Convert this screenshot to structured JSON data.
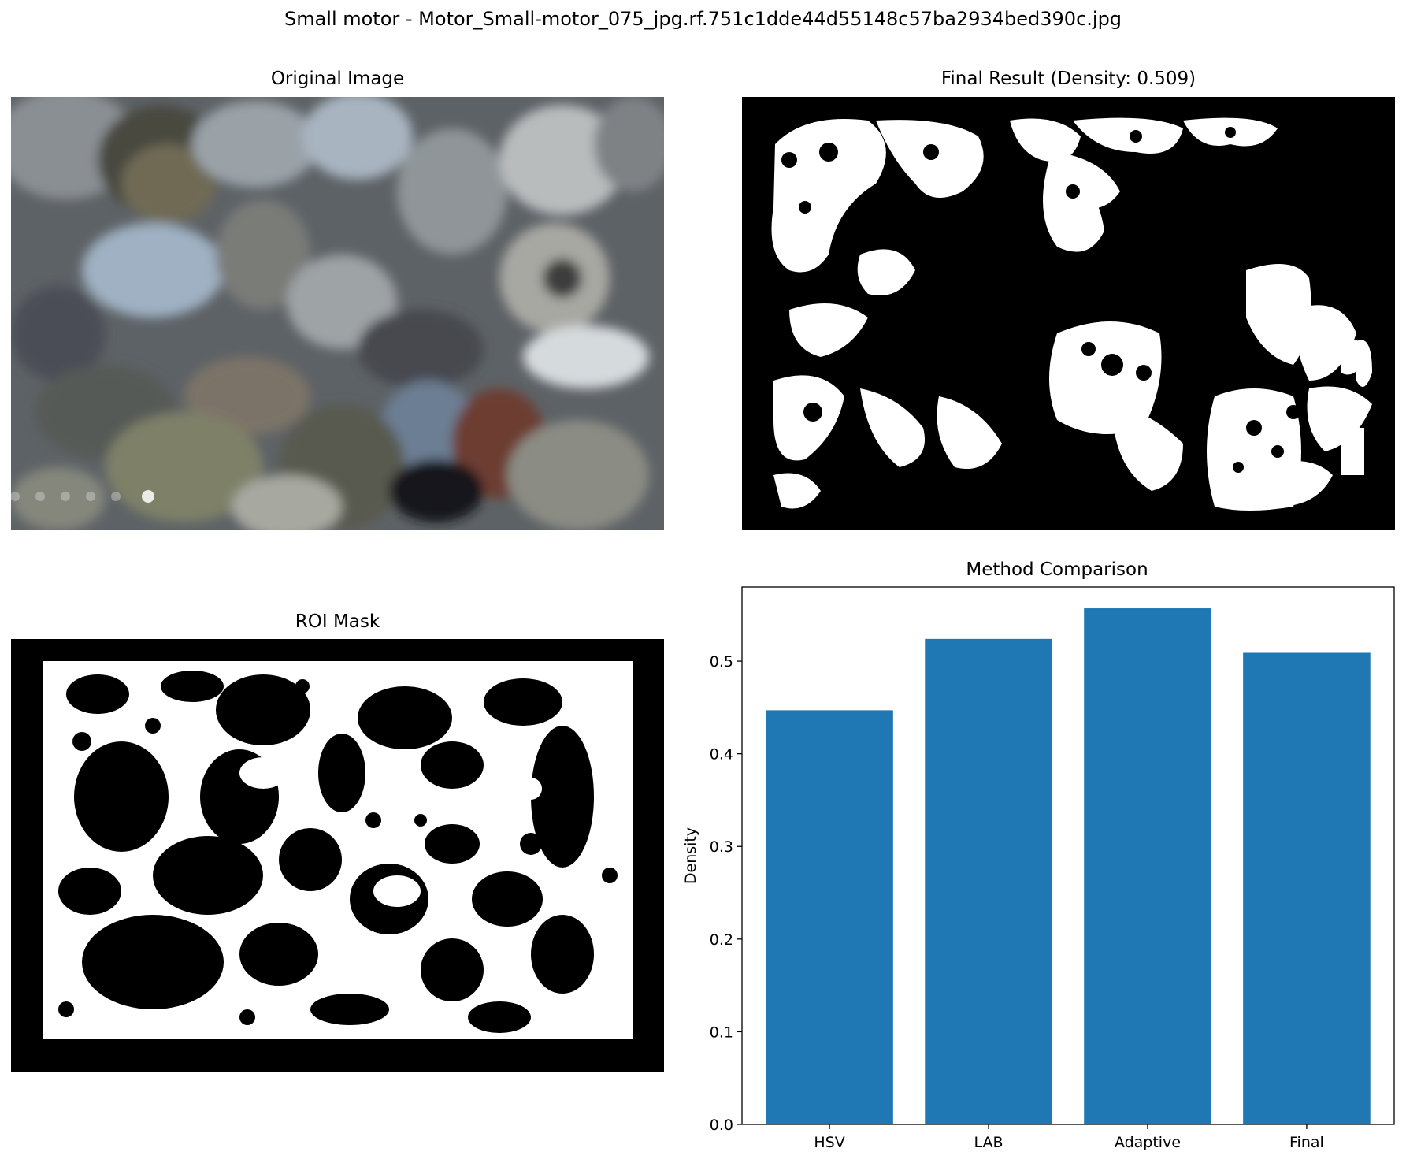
{
  "figure": {
    "title": "Small motor - Motor_Small-motor_075_jpg.rf.751c1dde44d55148c57ba2934bed390c.jpg"
  },
  "panels": {
    "original": {
      "title": "Original Image"
    },
    "final": {
      "title": "Final Result (Density: 0.509)"
    },
    "roi": {
      "title": "ROI Mask"
    }
  },
  "colors": {
    "bar": "#1f77b4",
    "mask_on": "#ffffff",
    "mask_off": "#000000"
  },
  "chart_data": {
    "type": "bar",
    "title": "Method Comparison",
    "categories": [
      "HSV",
      "LAB",
      "Adaptive",
      "Final"
    ],
    "values": [
      0.447,
      0.524,
      0.557,
      0.509
    ],
    "xlabel": "",
    "ylabel": "Density",
    "ylim": [
      0,
      0.58
    ],
    "yticks": [
      0.0,
      0.1,
      0.2,
      0.3,
      0.4,
      0.5
    ],
    "ytick_labels": [
      "0.0",
      "0.1",
      "0.2",
      "0.3",
      "0.4",
      "0.5"
    ],
    "grid": false
  }
}
